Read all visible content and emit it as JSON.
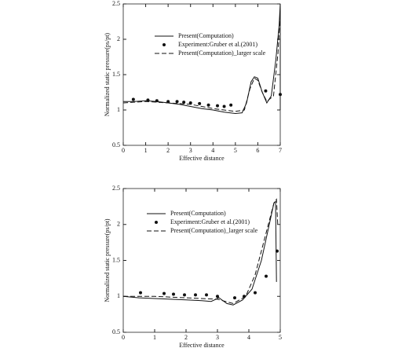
{
  "chart_data": [
    {
      "type": "line",
      "xlabel": "Effective distance",
      "ylabel": "Normalized static pressure(ps/pt)",
      "xlim": [
        0,
        7
      ],
      "ylim": [
        0.5,
        2.5
      ],
      "xticks": [
        0,
        1,
        2,
        3,
        4,
        5,
        6,
        7
      ],
      "yticks": [
        0.5,
        1,
        1.5,
        2,
        2.5
      ],
      "series": [
        {
          "name": "Present(Computation)",
          "color": "#111111",
          "mode": "lines",
          "dash": "solid",
          "x": [
            0,
            0.5,
            1,
            1.5,
            2,
            2.5,
            3,
            3.5,
            4,
            4.5,
            5,
            5.3,
            5.5,
            5.7,
            5.85,
            6.0,
            6.2,
            6.4,
            6.6,
            6.8,
            6.95,
            7.0,
            7.0
          ],
          "values": [
            1.12,
            1.12,
            1.13,
            1.12,
            1.1,
            1.08,
            1.05,
            1.02,
            1.0,
            0.97,
            0.95,
            0.96,
            1.1,
            1.4,
            1.47,
            1.45,
            1.25,
            1.1,
            1.2,
            1.7,
            2.2,
            2.5,
            1.0
          ]
        },
        {
          "name": "Experiment:Gruber et al.(2001)",
          "color": "#111111",
          "mode": "markers",
          "x": [
            0.45,
            1.1,
            1.5,
            2.0,
            2.4,
            2.7,
            3.0,
            3.4,
            3.8,
            4.2,
            4.5,
            4.8,
            6.35,
            7.0
          ],
          "values": [
            1.15,
            1.14,
            1.13,
            1.12,
            1.12,
            1.11,
            1.1,
            1.09,
            1.07,
            1.06,
            1.05,
            1.07,
            1.27,
            1.22
          ]
        },
        {
          "name": "Present(Computation)_larger scale",
          "color": "#111111",
          "mode": "lines",
          "dash": "dashed",
          "x": [
            0,
            1,
            2,
            3,
            4,
            5,
            5.4,
            5.65,
            5.85,
            6.0,
            6.2,
            6.4,
            6.7,
            6.9,
            7.0
          ],
          "values": [
            1.1,
            1.12,
            1.1,
            1.08,
            1.02,
            0.98,
            1.0,
            1.3,
            1.45,
            1.42,
            1.25,
            1.12,
            1.2,
            1.8,
            2.4
          ]
        }
      ]
    },
    {
      "type": "line",
      "xlabel": "Effective distance",
      "ylabel": "Normalized static pressure(ps/pt)",
      "xlim": [
        0,
        5
      ],
      "ylim": [
        0.5,
        2.5
      ],
      "xticks": [
        0,
        1,
        2,
        3,
        4,
        5
      ],
      "yticks": [
        0.5,
        1,
        1.5,
        2,
        2.5
      ],
      "series": [
        {
          "name": "Present(Computation)",
          "color": "#111111",
          "mode": "lines",
          "dash": "solid",
          "x": [
            0,
            0.5,
            1,
            1.5,
            2,
            2.5,
            2.8,
            3.05,
            3.3,
            3.5,
            3.8,
            4.1,
            4.4,
            4.65,
            4.8,
            4.85,
            4.88
          ],
          "values": [
            1.0,
            0.98,
            0.97,
            0.96,
            0.95,
            0.94,
            0.93,
            0.98,
            0.9,
            0.88,
            0.95,
            1.1,
            1.5,
            2.0,
            2.3,
            2.32,
            1.2
          ]
        },
        {
          "name": "Experiment:Gruber et al.(2001)",
          "color": "#111111",
          "mode": "markers",
          "x": [
            0.55,
            1.3,
            1.6,
            1.95,
            2.3,
            2.65,
            3.0,
            3.55,
            3.85,
            4.2,
            4.55,
            4.9
          ],
          "values": [
            1.05,
            1.04,
            1.03,
            1.02,
            1.02,
            1.02,
            1.0,
            0.98,
            1.0,
            1.05,
            1.28,
            1.63
          ]
        },
        {
          "name": "Present(Computation)_larger scale",
          "color": "#111111",
          "mode": "lines",
          "dash": "dashed",
          "x": [
            0,
            1,
            2,
            3,
            3.5,
            3.9,
            4.2,
            4.5,
            4.8,
            4.88,
            4.92
          ],
          "values": [
            1.0,
            1.0,
            0.98,
            0.96,
            0.9,
            1.0,
            1.3,
            1.8,
            2.3,
            2.35,
            2.0
          ]
        }
      ]
    }
  ]
}
